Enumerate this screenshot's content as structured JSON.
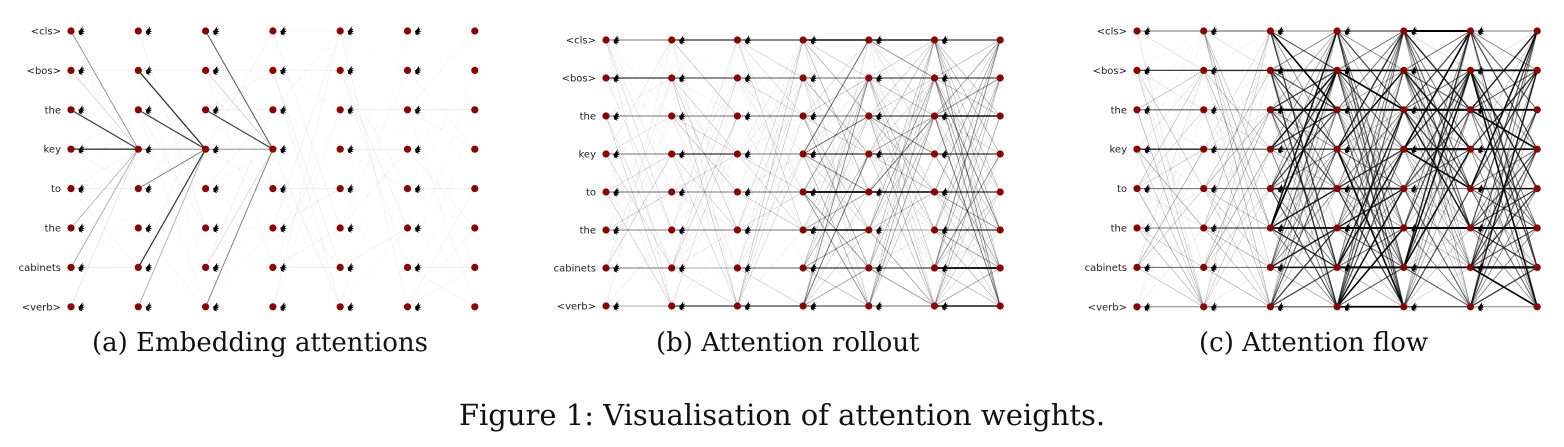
{
  "tokens": [
    "<cls>",
    "<bos>",
    "the",
    "key",
    "to",
    "the",
    "cabinets",
    "<verb>"
  ],
  "num_layers": 7,
  "node_color": "#8b0000",
  "edge_color": "#000000",
  "panels": [
    {
      "id": "a",
      "caption": "(a) Embedding attentions"
    },
    {
      "id": "b",
      "caption": "(b) Attention rollout"
    },
    {
      "id": "c",
      "caption": "(c) Attention flow"
    }
  ],
  "figure_caption": "Figure 1: Visualisation of attention weights."
}
